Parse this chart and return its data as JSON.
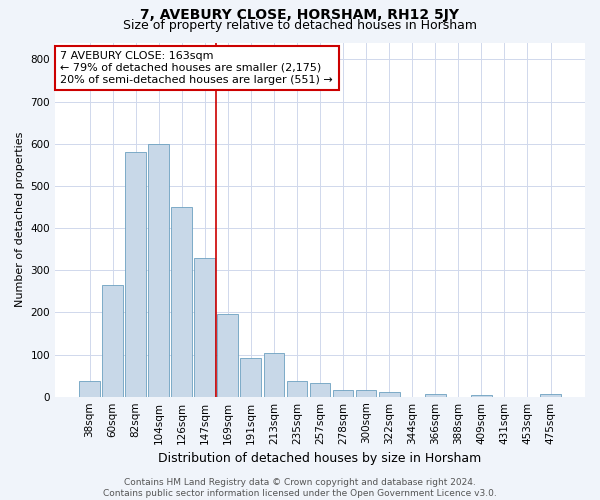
{
  "title": "7, AVEBURY CLOSE, HORSHAM, RH12 5JY",
  "subtitle": "Size of property relative to detached houses in Horsham",
  "xlabel": "Distribution of detached houses by size in Horsham",
  "ylabel": "Number of detached properties",
  "categories": [
    "38sqm",
    "60sqm",
    "82sqm",
    "104sqm",
    "126sqm",
    "147sqm",
    "169sqm",
    "191sqm",
    "213sqm",
    "235sqm",
    "257sqm",
    "278sqm",
    "300sqm",
    "322sqm",
    "344sqm",
    "366sqm",
    "388sqm",
    "409sqm",
    "431sqm",
    "453sqm",
    "475sqm"
  ],
  "values": [
    37,
    265,
    580,
    600,
    450,
    330,
    195,
    92,
    103,
    38,
    33,
    17,
    16,
    10,
    0,
    6,
    0,
    5,
    0,
    0,
    7
  ],
  "bar_color": "#c8d8e8",
  "bar_edge_color": "#6ca0c0",
  "vline_x": 5.5,
  "vline_color": "#cc0000",
  "annotation_text": "7 AVEBURY CLOSE: 163sqm\n← 79% of detached houses are smaller (2,175)\n20% of semi-detached houses are larger (551) →",
  "annotation_box_facecolor": "#ffffff",
  "annotation_box_edgecolor": "#cc0000",
  "ylim": [
    0,
    840
  ],
  "yticks": [
    0,
    100,
    200,
    300,
    400,
    500,
    600,
    700,
    800
  ],
  "grid_color": "#d0d8ec",
  "plot_bg_color": "#ffffff",
  "fig_bg_color": "#f0f4fa",
  "footer": "Contains HM Land Registry data © Crown copyright and database right 2024.\nContains public sector information licensed under the Open Government Licence v3.0.",
  "title_fontsize": 10,
  "subtitle_fontsize": 9,
  "xlabel_fontsize": 9,
  "ylabel_fontsize": 8,
  "tick_fontsize": 7.5,
  "annot_fontsize": 8,
  "footer_fontsize": 6.5
}
